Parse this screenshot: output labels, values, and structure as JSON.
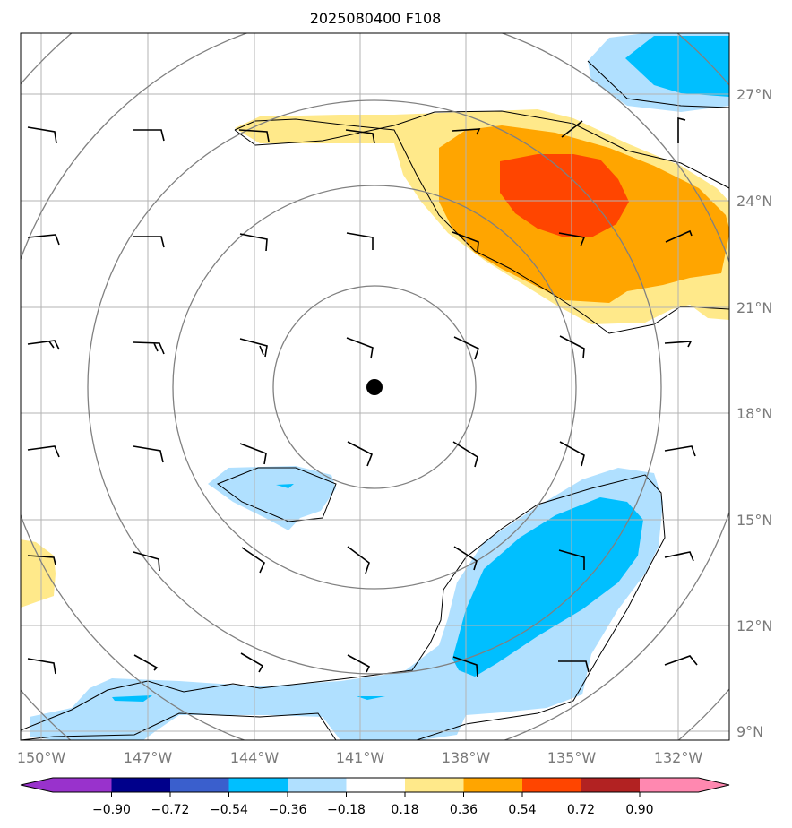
{
  "chart_data": {
    "type": "contour-map",
    "title": "2025080400 F108",
    "xlabel": "",
    "ylabel": "",
    "lon_ticks": [
      "150°W",
      "147°W",
      "144°W",
      "141°W",
      "138°W",
      "135°W",
      "132°W"
    ],
    "lon_values": [
      -150,
      -147,
      -144,
      -141,
      -138,
      -135,
      -132
    ],
    "lat_ticks": [
      "27°N",
      "24°N",
      "21°N",
      "18°N",
      "15°N",
      "12°N",
      "9°N"
    ],
    "lat_values": [
      27,
      24,
      21,
      18,
      15,
      12,
      9
    ],
    "xlim": [
      -150.6,
      -130.6
    ],
    "ylim": [
      8.75,
      28.7
    ],
    "grid": true,
    "center_marker": {
      "lon": -140.6,
      "lat": 18.7
    },
    "range_rings_km": [
      300,
      600,
      900,
      1200,
      1500
    ],
    "colorbar": {
      "ticks": [
        "−0.90",
        "−0.72",
        "−0.54",
        "−0.36",
        "−0.18",
        "0.18",
        "0.36",
        "0.54",
        "0.72",
        "0.90"
      ],
      "tick_values": [
        -0.9,
        -0.72,
        -0.54,
        -0.36,
        -0.18,
        0.18,
        0.36,
        0.54,
        0.72,
        0.9
      ],
      "colors": [
        "#9932cc",
        "#00008b",
        "#3a5fcd",
        "#00bfff",
        "#b0e0ff",
        "#ffffff",
        "#ffe98a",
        "#ffa500",
        "#ff4500",
        "#b22222",
        "#ff88b0"
      ],
      "extend": "both"
    },
    "wind_barb_lons": [
      -150,
      -147,
      -144,
      -141,
      -138,
      -135,
      -132
    ],
    "wind_barb_lats": [
      26,
      23,
      20,
      17,
      14,
      11
    ]
  }
}
